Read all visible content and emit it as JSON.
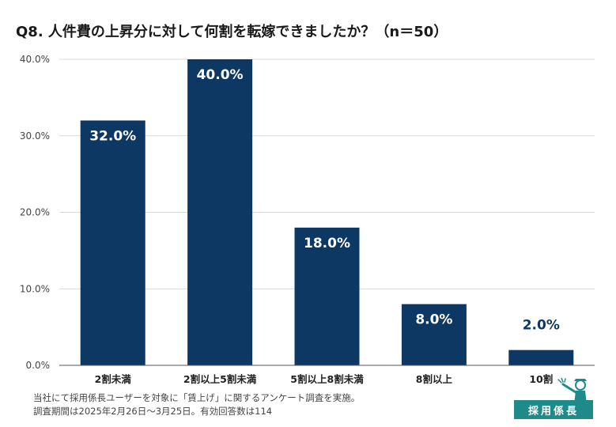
{
  "title": "Q8. 人件費の上昇分に対して何割を転嫁できましたか？（n＝50）",
  "footnote": {
    "line1": "当社にて採用係長ユーザーを対象に「賃上げ」に関するアンケート調査を実施。",
    "line2": "調査期間は2025年2月26日〜3月25日。有効回答数は114"
  },
  "logo": {
    "text": "採用係長",
    "color": "#1f8a8a"
  },
  "chart_data": {
    "type": "bar",
    "categories": [
      "2割未満",
      "2割以上5割未満",
      "5割以上8割未満",
      "8割以上",
      "10割"
    ],
    "values": [
      32.0,
      40.0,
      18.0,
      8.0,
      2.0
    ],
    "value_labels": [
      "32.0%",
      "40.0%",
      "18.0%",
      "8.0%",
      "2.0%"
    ],
    "y_ticks": [
      "0.0%",
      "10.0%",
      "20.0%",
      "30.0%",
      "40.0%"
    ],
    "ylim": [
      0,
      40
    ],
    "grid": true,
    "bar_color": "#0d3864",
    "label_inside_color": "#ffffff",
    "label_outside_color": "#0d3864"
  }
}
